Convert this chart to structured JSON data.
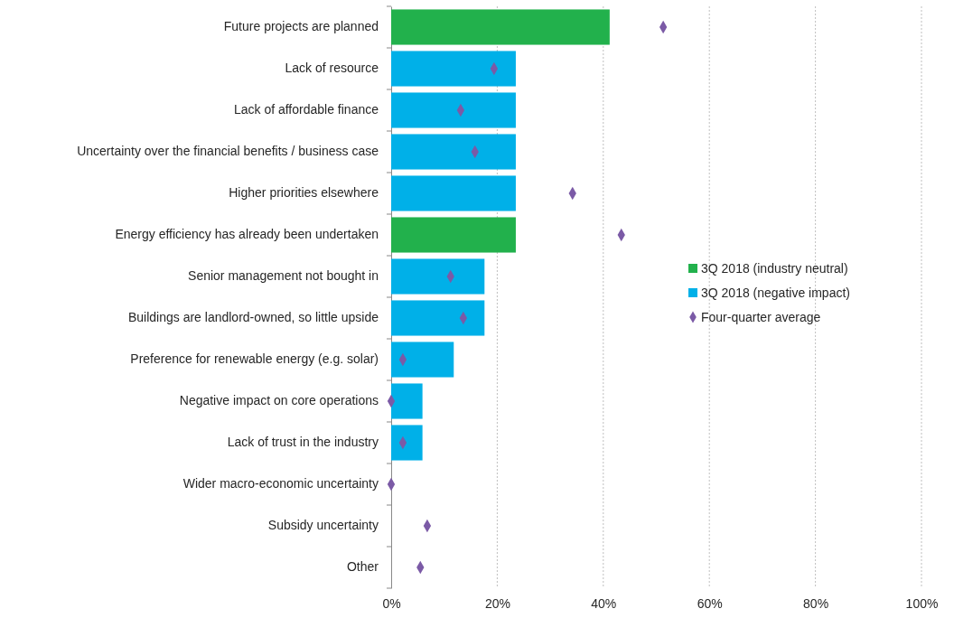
{
  "chart_data": {
    "type": "bar",
    "orientation": "horizontal",
    "categories": [
      "Future projects are planned",
      "Lack of resource",
      "Lack of affordable finance",
      "Uncertainty over the financial benefits / business case",
      "Higher priorities elsewhere",
      "Energy efficiency has already been undertaken",
      "Senior management not bought in",
      "Buildings are landlord-owned, so little upside",
      "Preference for renewable energy (e.g. solar)",
      "Negative impact on core operations",
      "Lack of trust in the industry",
      "Wider macro-economic uncertainty",
      "Subsidy uncertainty",
      "Other"
    ],
    "series": [
      {
        "name": "3Q 2018 (industry neutral)",
        "color": "#22b14c",
        "values": [
          41.2,
          null,
          null,
          null,
          null,
          23.5,
          null,
          null,
          null,
          null,
          null,
          null,
          null,
          null
        ]
      },
      {
        "name": "3Q 2018 (negative impact)",
        "color": "#00b0e8",
        "values": [
          null,
          23.5,
          23.5,
          23.5,
          23.5,
          null,
          17.6,
          17.6,
          11.8,
          5.9,
          5.9,
          null,
          null,
          null
        ]
      },
      {
        "name": "Four-quarter average",
        "type": "scatter",
        "marker": "diamond",
        "color": "#7b5aa6",
        "values": [
          51.3,
          19.4,
          13.1,
          15.8,
          34.2,
          43.4,
          11.2,
          13.6,
          2.2,
          0,
          2.2,
          0,
          6.8,
          5.5
        ]
      }
    ],
    "xlim": [
      0,
      100
    ],
    "xticks": [
      {
        "value": 0,
        "label": "0%"
      },
      {
        "value": 20,
        "label": "20%"
      },
      {
        "value": 40,
        "label": "40%"
      },
      {
        "value": 60,
        "label": "60%"
      },
      {
        "value": 80,
        "label": "80%"
      },
      {
        "value": 100,
        "label": "100%"
      }
    ],
    "grid": "x",
    "legend": "right"
  }
}
